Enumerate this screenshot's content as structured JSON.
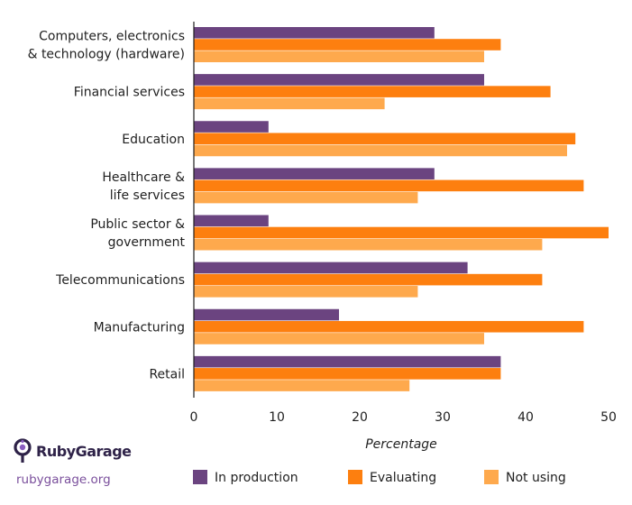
{
  "chart_data": {
    "type": "bar",
    "orientation": "horizontal",
    "categories": [
      [
        "Computers, electronics",
        "& technology (hardware)"
      ],
      [
        "Financial services"
      ],
      [
        "Education"
      ],
      [
        "Healthcare &",
        "life services"
      ],
      [
        "Public sector &",
        "government"
      ],
      [
        "Telecommunications"
      ],
      [
        "Manufacturing"
      ],
      [
        "Retail"
      ]
    ],
    "series": [
      {
        "name": "In production",
        "color": "#6b4480",
        "values": [
          29,
          35,
          9,
          29,
          9,
          33,
          17.5,
          37
        ]
      },
      {
        "name": "Evaluating",
        "color": "#fd7f0f",
        "values": [
          37,
          43,
          46,
          47,
          50,
          42,
          47,
          37
        ]
      },
      {
        "name": "Not using",
        "color": "#fea94d",
        "values": [
          35,
          23,
          45,
          27,
          42,
          27,
          35,
          26
        ]
      }
    ],
    "xlabel": "Percentage",
    "xlim": [
      0,
      50
    ],
    "xticks": [
      0,
      10,
      20,
      30,
      40,
      50
    ],
    "grid": false,
    "legend_position": "bottom"
  },
  "brand": {
    "name": "RubyGarage",
    "url": "rubygarage.org",
    "logo_icon": "rubygarage-logo-icon"
  }
}
